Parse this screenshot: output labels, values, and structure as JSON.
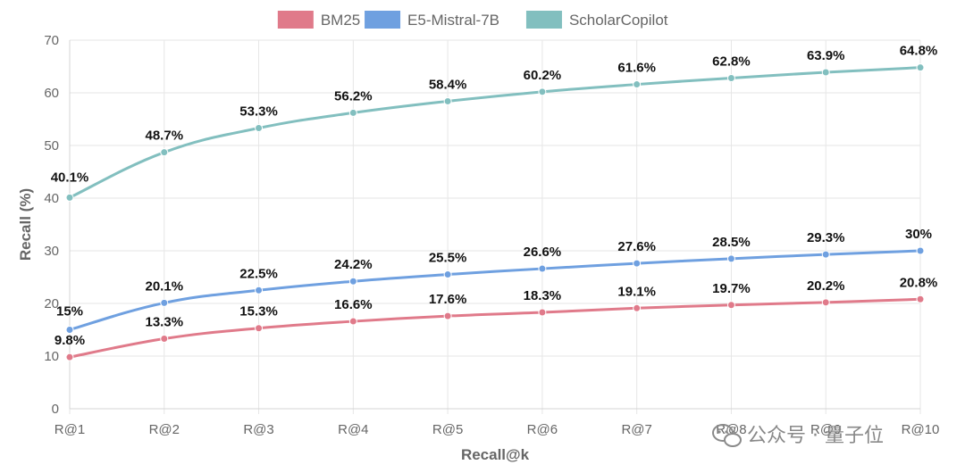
{
  "chart_data": {
    "type": "line",
    "categories": [
      "R@1",
      "R@2",
      "R@3",
      "R@4",
      "R@5",
      "R@6",
      "R@7",
      "R@8",
      "R@9",
      "R@10"
    ],
    "series": [
      {
        "name": "BM25",
        "color": "#e07a8a",
        "values": [
          9.8,
          13.3,
          15.3,
          16.6,
          17.6,
          18.3,
          19.1,
          19.7,
          20.2,
          20.8
        ],
        "labels": [
          "9.8%",
          "13.3%",
          "15.3%",
          "16.6%",
          "17.6%",
          "18.3%",
          "19.1%",
          "19.7%",
          "20.2%",
          "20.8%"
        ]
      },
      {
        "name": "E5-Mistral-7B",
        "color": "#6fa0e0",
        "values": [
          15,
          20.1,
          22.5,
          24.2,
          25.5,
          26.6,
          27.6,
          28.5,
          29.3,
          30
        ],
        "labels": [
          "15%",
          "20.1%",
          "22.5%",
          "24.2%",
          "25.5%",
          "26.6%",
          "27.6%",
          "28.5%",
          "29.3%",
          "30%"
        ]
      },
      {
        "name": "ScholarCopilot",
        "color": "#82bfbf",
        "values": [
          40.1,
          48.7,
          53.3,
          56.2,
          58.4,
          60.2,
          61.6,
          62.8,
          63.9,
          64.8
        ],
        "labels": [
          "40.1%",
          "48.7%",
          "53.3%",
          "56.2%",
          "58.4%",
          "60.2%",
          "61.6%",
          "62.8%",
          "63.9%",
          "64.8%"
        ]
      }
    ],
    "xlabel": "Recall@k",
    "ylabel": "Recall (%)",
    "ylim": [
      0,
      70
    ],
    "yticks": [
      0,
      10,
      20,
      30,
      40,
      50,
      60,
      70
    ],
    "grid": true,
    "legend": "top-center"
  },
  "watermark": {
    "text": "公众号 · 量子位",
    "icon": "wechat-icon"
  }
}
